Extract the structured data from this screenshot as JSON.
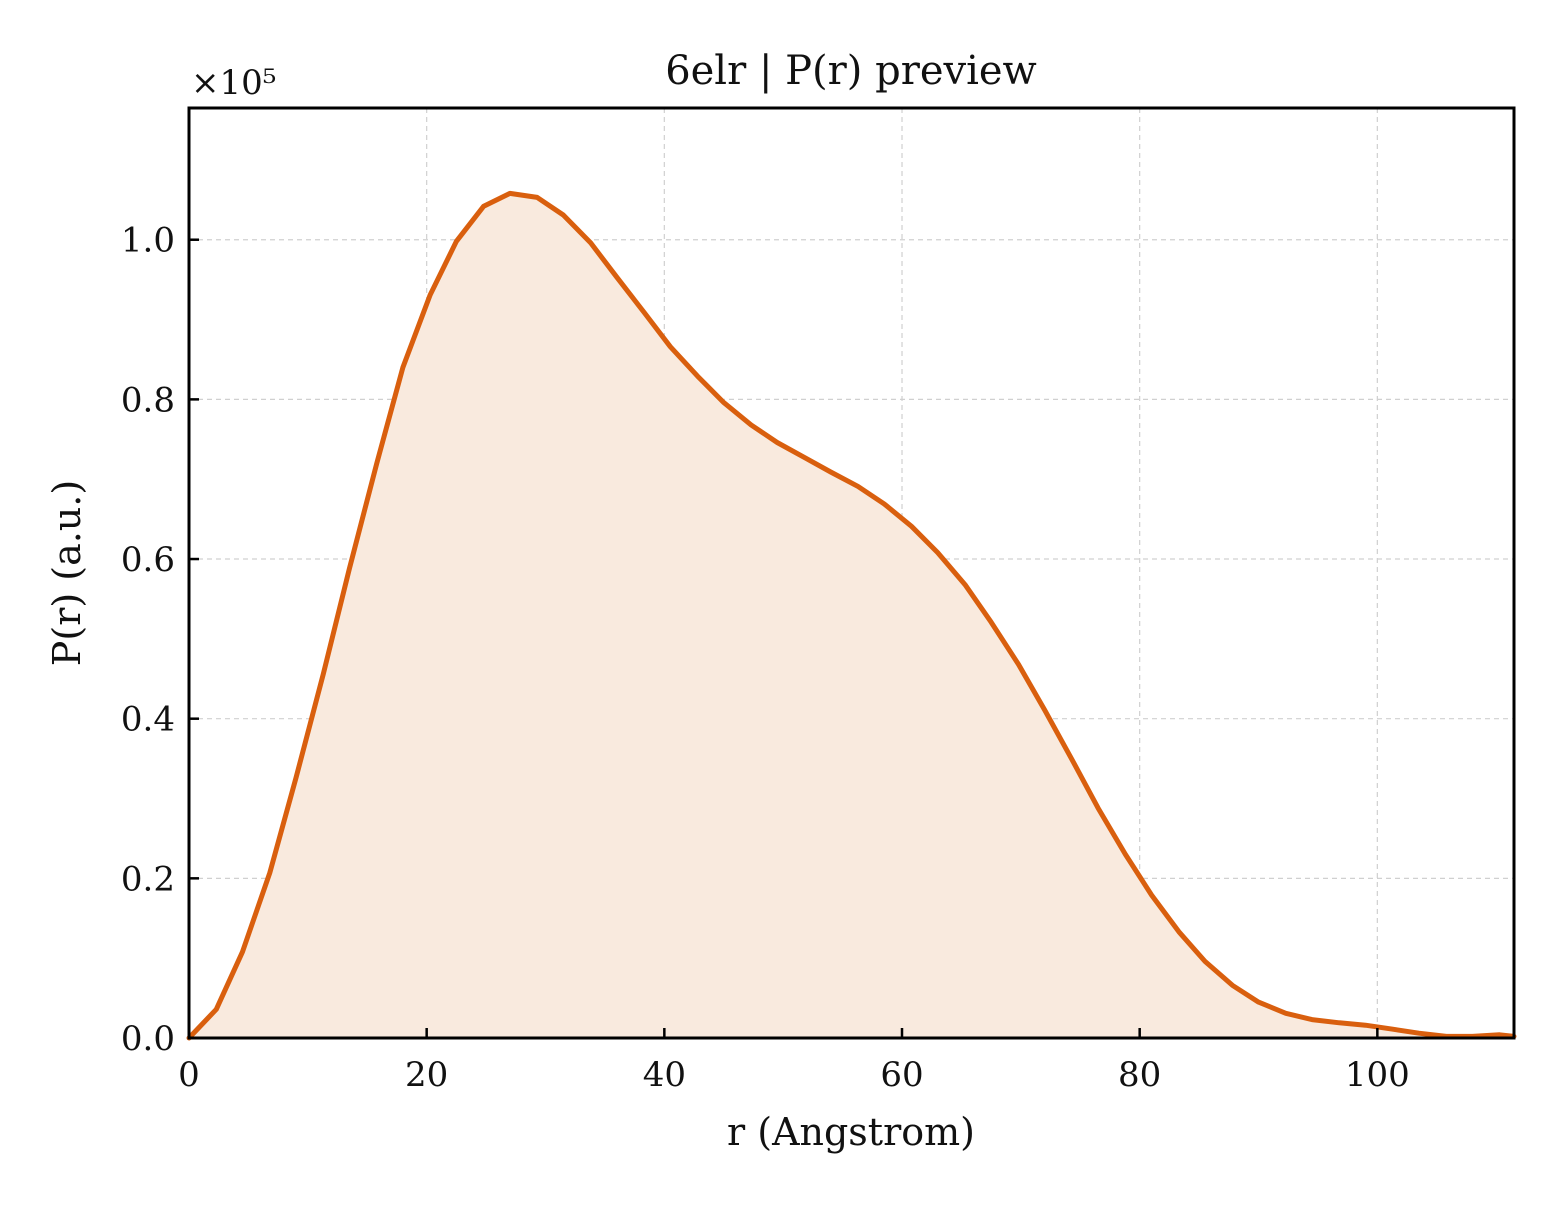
{
  "chart_data": {
    "type": "area",
    "title": "6elr | P(r) preview",
    "xlabel": "r (Angstrom)",
    "ylabel": "P(r) (a.u.)",
    "y_offset_label": "×10⁵",
    "xlim": [
      0,
      111.5
    ],
    "ylim": [
      0,
      1.165
    ],
    "grid": true,
    "legend": "none",
    "x_ticks": [
      0,
      20,
      40,
      60,
      80,
      100
    ],
    "y_ticks": [
      0.0,
      0.2,
      0.4,
      0.6,
      0.8,
      1.0
    ],
    "x_tick_labels": [
      "0",
      "20",
      "40",
      "60",
      "80",
      "100"
    ],
    "y_tick_labels": [
      "0.0",
      "0.2",
      "0.4",
      "0.6",
      "0.8",
      "1.0"
    ],
    "colors": {
      "line": "#d95f0e",
      "fill": "#f9eade",
      "grid": "#d0d0d0",
      "axes": "#000000"
    },
    "series": [
      {
        "x": [
          0,
          2.3,
          4.5,
          6.8,
          9.0,
          11.3,
          13.5,
          15.8,
          18.0,
          20.3,
          22.5,
          24.8,
          27.0,
          29.3,
          31.5,
          33.8,
          36.0,
          38.3,
          40.5,
          42.8,
          45.0,
          47.3,
          49.5,
          51.8,
          54.0,
          56.3,
          58.5,
          60.8,
          63.0,
          65.3,
          67.5,
          69.8,
          72.0,
          74.3,
          76.5,
          78.8,
          81.0,
          83.3,
          85.5,
          87.8,
          90.0,
          92.3,
          94.5,
          96.8,
          99.0,
          101.3,
          103.5,
          105.8,
          108.0,
          110.3,
          111.5
        ],
        "y": [
          0.0,
          0.036,
          0.108,
          0.207,
          0.326,
          0.456,
          0.588,
          0.72,
          0.84,
          0.931,
          0.998,
          1.042,
          1.058,
          1.053,
          1.031,
          0.996,
          0.953,
          0.909,
          0.866,
          0.829,
          0.796,
          0.768,
          0.746,
          0.727,
          0.709,
          0.691,
          0.669,
          0.641,
          0.608,
          0.568,
          0.521,
          0.468,
          0.411,
          0.349,
          0.288,
          0.23,
          0.179,
          0.133,
          0.096,
          0.066,
          0.045,
          0.031,
          0.023,
          0.019,
          0.016,
          0.011,
          0.006,
          0.002,
          0.002,
          0.004,
          0.002
        ]
      }
    ]
  }
}
